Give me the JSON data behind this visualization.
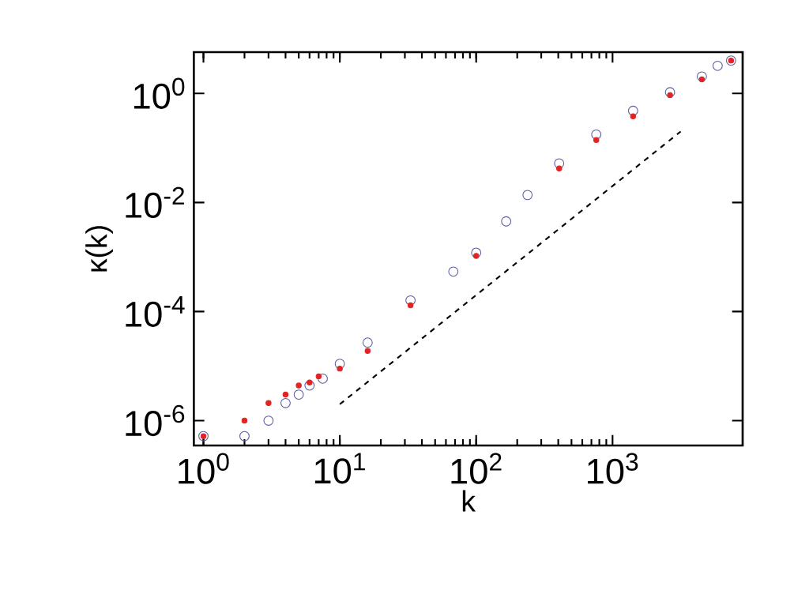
{
  "chart_data": {
    "type": "scatter",
    "xlabel": "k",
    "ylabel": "κ(k)",
    "log": "xy",
    "grid": false,
    "xlim": [
      0.85,
      9000
    ],
    "ylim": [
      3.5e-07,
      5.7
    ],
    "xticks": [
      {
        "value": 1,
        "label": "10$^{0}$"
      },
      {
        "value": 10,
        "label": "10$^{1}$"
      },
      {
        "value": 100,
        "label": "10$^{2}$"
      },
      {
        "value": 1000,
        "label": "10$^{3}$"
      }
    ],
    "yticks": [
      {
        "value": 1e-06,
        "label": "10$^{-6}$"
      },
      {
        "value": 0.0001,
        "label": "10$^{-4}$"
      },
      {
        "value": 0.01,
        "label": "10$^{-2}$"
      },
      {
        "value": 1,
        "label": "10$^{0}$"
      }
    ],
    "series": [
      {
        "marker": "circle",
        "color": "#5c5ca8",
        "x": [
          1,
          2,
          3,
          4,
          5,
          6,
          7.5,
          10,
          16,
          33,
          68,
          100,
          166,
          238,
          406,
          760,
          1415,
          2640,
          4520,
          5900,
          7400
        ],
        "values": [
          5.2e-07,
          5.2e-07,
          1e-06,
          2.1e-06,
          3e-06,
          4.4e-06,
          5.9e-06,
          1.1e-05,
          2.7e-05,
          0.00016,
          0.00054,
          0.0012,
          0.0045,
          0.0137,
          0.052,
          0.176,
          0.48,
          1.05,
          2.04,
          3.2,
          4
        ]
      },
      {
        "marker": "circle",
        "color": "#e02424",
        "x": [
          1,
          2,
          3,
          4,
          5,
          6,
          7,
          10,
          16,
          33,
          100,
          406,
          760,
          1415,
          2640,
          4520,
          7400
        ],
        "values": [
          5.2e-07,
          1e-06,
          2.1e-06,
          3e-06,
          4.4e-06,
          5e-06,
          6.5e-06,
          9e-06,
          1.9e-05,
          0.00013,
          0.00105,
          0.042,
          0.14,
          0.38,
          0.93,
          1.8,
          4
        ]
      },
      {
        "type": "line",
        "marker": "none",
        "line_style": "dashed",
        "color": "#000000",
        "x": [
          10,
          3160
        ],
        "values": [
          2e-06,
          0.2
        ]
      }
    ]
  }
}
